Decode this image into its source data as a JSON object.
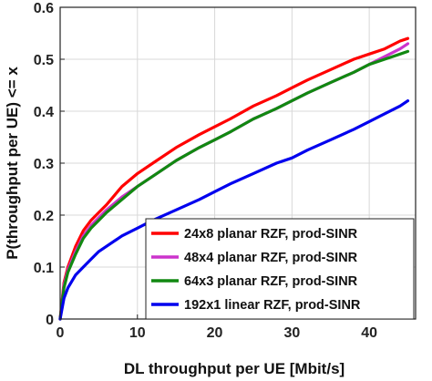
{
  "chart_data": {
    "type": "line",
    "xlabel": "DL throughput per UE [Mbit/s]",
    "ylabel": "P(throughput per UE) <= x",
    "xlim": [
      0,
      46
    ],
    "ylim": [
      0,
      0.6
    ],
    "xticks": [
      0,
      10,
      20,
      30,
      40
    ],
    "yticks": [
      0,
      0.1,
      0.2,
      0.3,
      0.4,
      0.5,
      0.6
    ],
    "xtick_labels": [
      "0",
      "10",
      "20",
      "30",
      "40"
    ],
    "ytick_labels": [
      "0",
      "0.1",
      "0.2",
      "0.3",
      "0.4",
      "0.5",
      "0.6"
    ],
    "grid": true,
    "legend_position": "lower-right",
    "series": [
      {
        "name": "24x8 planar RZF, prod-SINR",
        "color": "#ff0000",
        "x": [
          0,
          0.5,
          1,
          2,
          3,
          4,
          5,
          6,
          8,
          10,
          12,
          15,
          18,
          20,
          22,
          25,
          28,
          30,
          32,
          35,
          38,
          40,
          42,
          44,
          45
        ],
        "y": [
          0,
          0.07,
          0.1,
          0.14,
          0.17,
          0.19,
          0.205,
          0.22,
          0.255,
          0.28,
          0.3,
          0.33,
          0.355,
          0.37,
          0.385,
          0.41,
          0.43,
          0.445,
          0.46,
          0.48,
          0.5,
          0.51,
          0.52,
          0.535,
          0.54
        ]
      },
      {
        "name": "48x4 planar RZF, prod-SINR",
        "color": "#cc33cc",
        "x": [
          0,
          0.5,
          1,
          2,
          3,
          4,
          5,
          6,
          8,
          10,
          12,
          15,
          18,
          20,
          22,
          25,
          28,
          30,
          32,
          35,
          38,
          40,
          42,
          44,
          45
        ],
        "y": [
          0,
          0.065,
          0.095,
          0.13,
          0.16,
          0.18,
          0.195,
          0.21,
          0.235,
          0.255,
          0.275,
          0.305,
          0.33,
          0.345,
          0.36,
          0.385,
          0.405,
          0.42,
          0.435,
          0.455,
          0.475,
          0.49,
          0.505,
          0.52,
          0.53
        ]
      },
      {
        "name": "64x3 planar RZF, prod-SINR",
        "color": "#118811",
        "x": [
          0,
          0.5,
          1,
          2,
          3,
          4,
          5,
          6,
          8,
          10,
          12,
          15,
          18,
          20,
          22,
          25,
          28,
          30,
          32,
          35,
          38,
          40,
          42,
          44,
          45
        ],
        "y": [
          0,
          0.06,
          0.09,
          0.125,
          0.155,
          0.175,
          0.19,
          0.205,
          0.23,
          0.255,
          0.275,
          0.305,
          0.33,
          0.345,
          0.36,
          0.385,
          0.405,
          0.42,
          0.435,
          0.455,
          0.475,
          0.49,
          0.5,
          0.51,
          0.515
        ]
      },
      {
        "name": "192x1 linear RZF, prod-SINR",
        "color": "#0000ee",
        "x": [
          0,
          0.5,
          1,
          2,
          3,
          4,
          5,
          6,
          8,
          10,
          12,
          15,
          18,
          20,
          22,
          25,
          28,
          30,
          32,
          35,
          38,
          40,
          42,
          44,
          45
        ],
        "y": [
          0,
          0.04,
          0.06,
          0.085,
          0.1,
          0.115,
          0.13,
          0.14,
          0.16,
          0.175,
          0.19,
          0.21,
          0.23,
          0.245,
          0.26,
          0.28,
          0.3,
          0.31,
          0.325,
          0.345,
          0.365,
          0.38,
          0.395,
          0.41,
          0.42
        ]
      }
    ]
  }
}
